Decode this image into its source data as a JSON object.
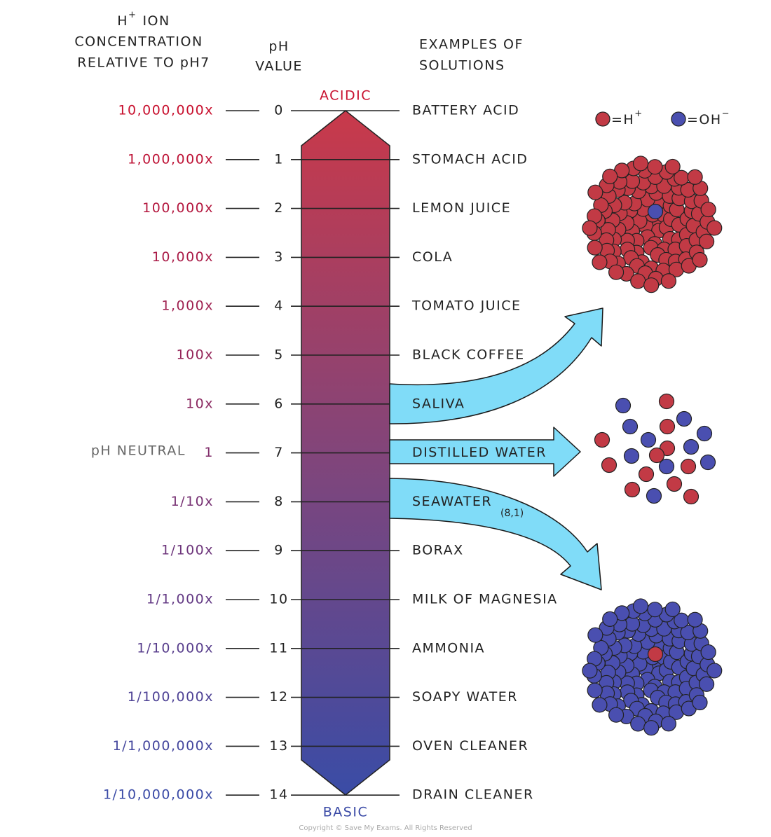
{
  "header": {
    "concentration": {
      "base": "H",
      "sup": "+",
      "rest": "ION",
      "lines": [
        "CONCENTRATION",
        "RELATIVE TO pH7"
      ]
    },
    "ph": [
      "pH",
      "VALUE"
    ],
    "examples": [
      "EXAMPLES OF",
      "SOLUTIONS"
    ]
  },
  "acidic": "ACIDIC",
  "basic": "BASIC",
  "neutral": "pH NEUTRAL",
  "rows": [
    {
      "concentration": "10,000,000x",
      "ph": 0,
      "example": "BATTERY ACID"
    },
    {
      "concentration": "1,000,000x",
      "ph": 1,
      "example": "STOMACH ACID"
    },
    {
      "concentration": "100,000x",
      "ph": 2,
      "example": "LEMON JUICE"
    },
    {
      "concentration": "10,000x",
      "ph": 3,
      "example": "COLA"
    },
    {
      "concentration": "1,000x",
      "ph": 4,
      "example": "TOMATO JUICE"
    },
    {
      "concentration": "100x",
      "ph": 5,
      "example": "BLACK COFFEE"
    },
    {
      "concentration": "10x",
      "ph": 6,
      "example": "SALIVA"
    },
    {
      "concentration": "1",
      "ph": 7,
      "example": "DISTILLED WATER"
    },
    {
      "concentration": "1/10x",
      "ph": 8,
      "example": "SEAWATER"
    },
    {
      "concentration": "1/100x",
      "ph": 9,
      "example": "BORAX"
    },
    {
      "concentration": "1/1,000x",
      "ph": 10,
      "example": "MILK OF MAGNESIA"
    },
    {
      "concentration": "1/10,000x",
      "ph": 11,
      "example": "AMMONIA"
    },
    {
      "concentration": "1/100,000x",
      "ph": 12,
      "example": "SOAPY WATER"
    },
    {
      "concentration": "1/1,000,000x",
      "ph": 13,
      "example": "OVEN CLEANER"
    },
    {
      "concentration": "1/10,000,000x",
      "ph": 14,
      "example": "DRAIN CLEANER"
    }
  ],
  "seawater_note": "(8,1)",
  "legend": {
    "h": {
      "base": "=H",
      "sup": "+"
    },
    "oh": {
      "base": "=OH",
      "sup": "−"
    }
  },
  "copyright": "Copyright © Save My Exams. All Rights Reserved"
}
